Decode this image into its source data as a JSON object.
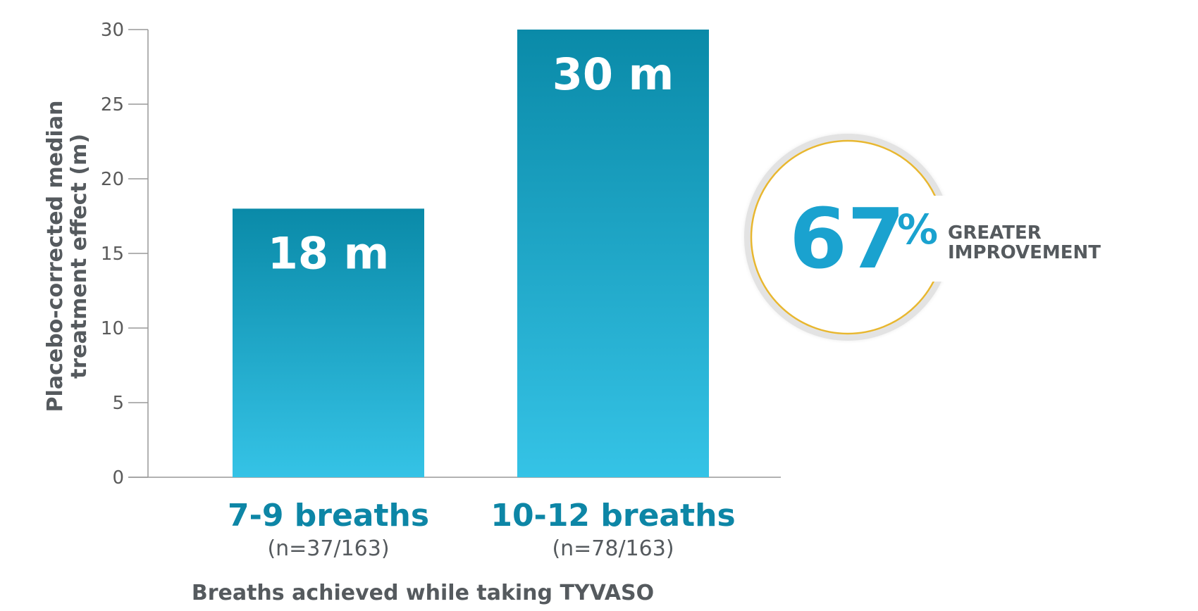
{
  "chart_data": {
    "type": "bar",
    "categories": [
      "7-9 breaths",
      "10-12 breaths"
    ],
    "category_subtitles": [
      "(n=37/163)",
      "(n=78/163)"
    ],
    "values": [
      18,
      30
    ],
    "data_labels": [
      "18 m",
      "30 m"
    ],
    "xlabel": "Breaths achieved while taking TYVASO",
    "ylabel_lines": [
      "Placebo-corrected median",
      "treatment effect (m)"
    ],
    "ylim": [
      0,
      30
    ],
    "yticks": [
      0,
      5,
      10,
      15,
      20,
      25,
      30
    ],
    "grid": false,
    "colors": {
      "bar_top": "#0a8aa8",
      "bar_bottom": "#35c3e6",
      "category_label": "#0d86a6",
      "text_gray": "#555a5e",
      "axis": "#999999"
    },
    "annotation": {
      "value": "67",
      "unit": "%",
      "line1": "GREATER",
      "line2": "IMPROVEMENT",
      "color": "#1aa2cf",
      "ring_color": "#e8b730",
      "ring_shadow": "#d9d9d9"
    }
  }
}
